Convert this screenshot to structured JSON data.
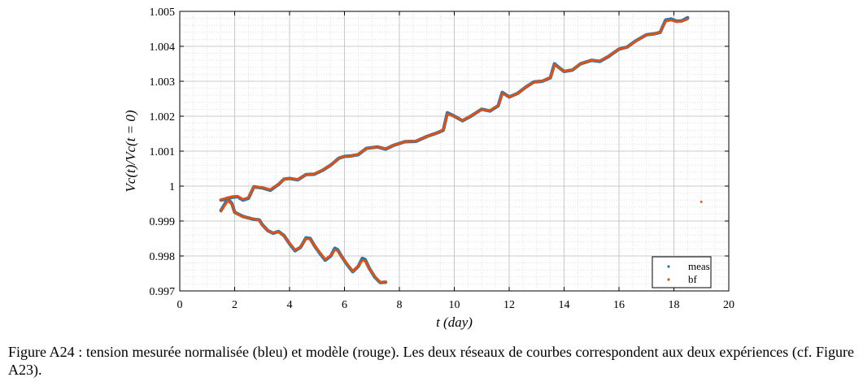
{
  "chart_data": {
    "type": "line",
    "xlabel": "t (day)",
    "ylabel": "Vc(t)/Vc(t = 0)",
    "xlim": [
      0,
      20
    ],
    "ylim": [
      0.997,
      1.005
    ],
    "x_ticks": [
      0,
      2,
      4,
      6,
      8,
      10,
      12,
      14,
      16,
      18,
      20
    ],
    "x_tick_labels": [
      "0",
      "2",
      "4",
      "6",
      "8",
      "10",
      "12",
      "14",
      "16",
      "18",
      "20"
    ],
    "y_ticks": [
      0.997,
      0.998,
      0.999,
      1.0,
      1.001,
      1.002,
      1.003,
      1.004,
      1.005
    ],
    "y_tick_labels": [
      "0.997",
      "0.998",
      "0.999",
      "1",
      "1.001",
      "1.002",
      "1.003",
      "1.004",
      "1.005"
    ],
    "grid": true,
    "minor_grid": true,
    "legend_position": "bottom-right",
    "series": [
      {
        "name": "meas",
        "color": "#1f77b4",
        "curves": [
          {
            "x": [
              1.5,
              1.75,
              1.9,
              2.0,
              2.3,
              2.7,
              2.9,
              3.0,
              3.2,
              3.4,
              3.6,
              3.8,
              4.0,
              4.2,
              4.4,
              4.6,
              4.75,
              4.9,
              5.1,
              5.3,
              5.5,
              5.65,
              5.75,
              5.9,
              6.1,
              6.3,
              6.5,
              6.65,
              6.75,
              6.9,
              7.1,
              7.3,
              7.5
            ],
            "y": [
              0.9993,
              0.99963,
              0.9995,
              0.99925,
              0.99913,
              0.99905,
              0.99903,
              0.9989,
              0.99873,
              0.99865,
              0.9987,
              0.99858,
              0.99835,
              0.99815,
              0.99825,
              0.99852,
              0.9985,
              0.9983,
              0.99808,
              0.99788,
              0.998,
              0.99822,
              0.99818,
              0.99798,
              0.99775,
              0.99755,
              0.9977,
              0.99793,
              0.9979,
              0.99765,
              0.9974,
              0.99724,
              0.99725
            ]
          },
          {
            "x": [
              1.5,
              1.7,
              1.9,
              2.1,
              2.3,
              2.5,
              2.7,
              3.0,
              3.3,
              3.6,
              3.8,
              4.0,
              4.3,
              4.6,
              4.9,
              5.2,
              5.5,
              5.8,
              6.0,
              6.2,
              6.5,
              6.8,
              7.2,
              7.5,
              7.8,
              8.2,
              8.6,
              9.0,
              9.4,
              9.6,
              9.75,
              10.0,
              10.3,
              10.6,
              11.0,
              11.3,
              11.6,
              11.75,
              12.0,
              12.3,
              12.6,
              12.9,
              13.2,
              13.5,
              13.65,
              13.8,
              14.0,
              14.3,
              14.6,
              15.0,
              15.3,
              15.6,
              16.0,
              16.3,
              16.6,
              17.0,
              17.3,
              17.5,
              17.7,
              17.9,
              18.1,
              18.3,
              18.5
            ],
            "y": [
              0.9996,
              0.99963,
              0.99968,
              0.9997,
              0.9996,
              0.99965,
              0.99998,
              0.99995,
              0.99988,
              1.00005,
              1.0002,
              1.00022,
              1.00018,
              1.00033,
              1.00034,
              1.00045,
              1.0006,
              1.0008,
              1.00085,
              1.00086,
              1.0009,
              1.00108,
              1.00112,
              1.00106,
              1.00117,
              1.00127,
              1.00128,
              1.00142,
              1.00153,
              1.0016,
              1.0021,
              1.002,
              1.00187,
              1.002,
              1.0022,
              1.00215,
              1.0023,
              1.00268,
              1.00255,
              1.00265,
              1.00283,
              1.00298,
              1.003,
              1.0031,
              1.0035,
              1.0034,
              1.00328,
              1.00332,
              1.0035,
              1.0036,
              1.00357,
              1.0037,
              1.00392,
              1.00398,
              1.00415,
              1.00433,
              1.00436,
              1.0044,
              1.00475,
              1.00478,
              1.00472,
              1.00473,
              1.00482
            ]
          }
        ]
      },
      {
        "name": "bf",
        "color": "#d95319",
        "curves": [
          {
            "x": [
              1.5,
              1.75,
              1.9,
              2.0,
              2.3,
              2.7,
              2.9,
              3.0,
              3.2,
              3.4,
              3.6,
              3.8,
              4.0,
              4.2,
              4.4,
              4.6,
              4.75,
              4.9,
              5.1,
              5.3,
              5.5,
              5.65,
              5.75,
              5.9,
              6.1,
              6.3,
              6.5,
              6.65,
              6.75,
              6.9,
              7.1,
              7.3,
              7.5
            ],
            "y": [
              0.99928,
              0.99958,
              0.99948,
              0.99924,
              0.99912,
              0.99906,
              0.99902,
              0.99889,
              0.99872,
              0.99866,
              0.99869,
              0.99857,
              0.99836,
              0.99817,
              0.99826,
              0.9985,
              0.99848,
              0.99829,
              0.9981,
              0.9979,
              0.99802,
              0.99818,
              0.99815,
              0.99797,
              0.99776,
              0.99757,
              0.99771,
              0.99788,
              0.99786,
              0.99763,
              0.99741,
              0.99725,
              0.99726
            ]
          },
          {
            "x": [
              1.5,
              1.7,
              1.9,
              2.1,
              2.3,
              2.5,
              2.7,
              3.0,
              3.3,
              3.6,
              3.8,
              4.0,
              4.3,
              4.6,
              4.9,
              5.2,
              5.5,
              5.8,
              6.0,
              6.2,
              6.5,
              6.8,
              7.2,
              7.5,
              7.8,
              8.2,
              8.6,
              9.0,
              9.4,
              9.6,
              9.75,
              10.0,
              10.3,
              10.6,
              11.0,
              11.3,
              11.6,
              11.75,
              12.0,
              12.3,
              12.6,
              12.9,
              13.2,
              13.5,
              13.65,
              13.8,
              14.0,
              14.3,
              14.6,
              15.0,
              15.3,
              15.6,
              16.0,
              16.3,
              16.6,
              17.0,
              17.3,
              17.5,
              17.7,
              17.9,
              18.1,
              18.3,
              18.5
            ],
            "y": [
              0.99961,
              0.99966,
              0.9997,
              0.99971,
              0.99962,
              0.99967,
              0.99998,
              0.99996,
              0.9999,
              1.00006,
              1.0002,
              1.00022,
              1.00019,
              1.00033,
              1.00035,
              1.00046,
              1.0006,
              1.0008,
              1.00085,
              1.00086,
              1.00091,
              1.00108,
              1.00112,
              1.00107,
              1.00117,
              1.00127,
              1.00129,
              1.00142,
              1.00153,
              1.00161,
              1.00207,
              1.00199,
              1.00188,
              1.00201,
              1.00219,
              1.00216,
              1.00231,
              1.00265,
              1.00255,
              1.00265,
              1.00283,
              1.00297,
              1.00301,
              1.00311,
              1.00347,
              1.00339,
              1.00328,
              1.00333,
              1.0035,
              1.0036,
              1.00358,
              1.00371,
              1.00392,
              1.00398,
              1.00414,
              1.00433,
              1.00436,
              1.00441,
              1.00472,
              1.00475,
              1.0047,
              1.00472,
              1.00478
            ]
          }
        ]
      }
    ],
    "outlier_points": [
      {
        "series": "bf",
        "x": 19.0,
        "y": 0.99955
      }
    ]
  },
  "caption": "Figure A24 : tension mesurée normalisée (bleu) et modèle (rouge). Les deux réseaux de courbes correspondent aux deux expériences (cf. Figure A23)."
}
